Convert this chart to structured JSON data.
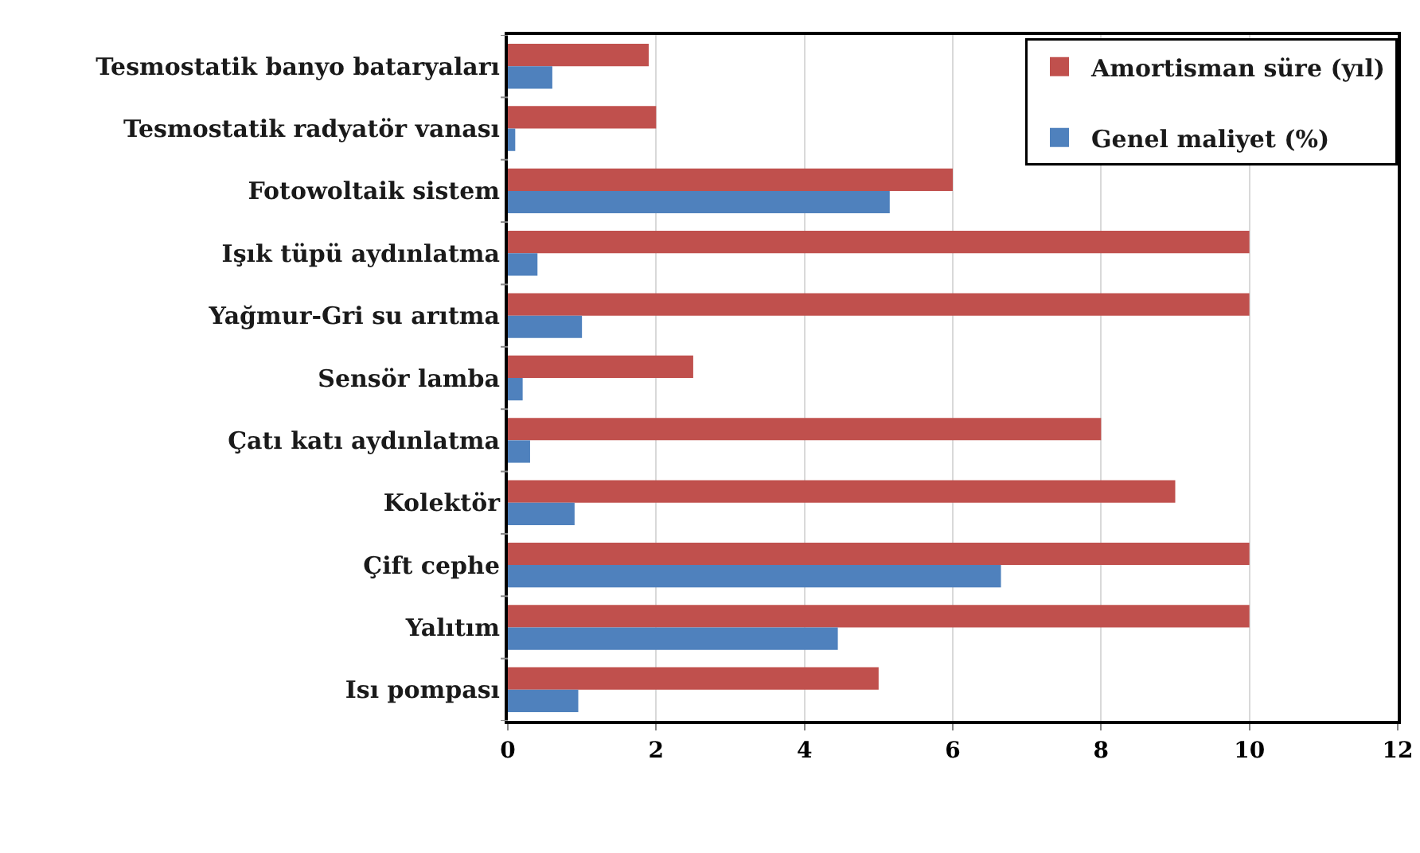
{
  "chart_data": {
    "type": "bar",
    "orientation": "horizontal",
    "categories": [
      "Tesmostatik banyo bataryaları",
      "Tesmostatik radyatör vanası",
      "Fotowoltaik sistem",
      "Işık tüpü aydınlatma",
      "Yağmur-Gri su arıtma",
      "Sensör lamba",
      "Çatı katı aydınlatma",
      "Kolektör",
      "Çift cephe",
      "Yalıtım",
      "Isı pompası"
    ],
    "series": [
      {
        "name": "Amortisman süre (yıl)",
        "color": "#c0504d",
        "values": [
          1.9,
          2,
          6,
          10,
          10,
          2.5,
          8,
          9,
          10,
          10,
          5
        ]
      },
      {
        "name": "Genel maliyet (%)",
        "color": "#4f81bd",
        "values": [
          0.6,
          0.1,
          5.15,
          0.4,
          1,
          0.2,
          0.3,
          0.9,
          6.65,
          4.45,
          0.95
        ]
      }
    ],
    "xlim": [
      0,
      12
    ],
    "xticks": [
      0,
      2,
      4,
      6,
      8,
      10,
      12
    ],
    "grid": "x",
    "legend": "top right"
  }
}
